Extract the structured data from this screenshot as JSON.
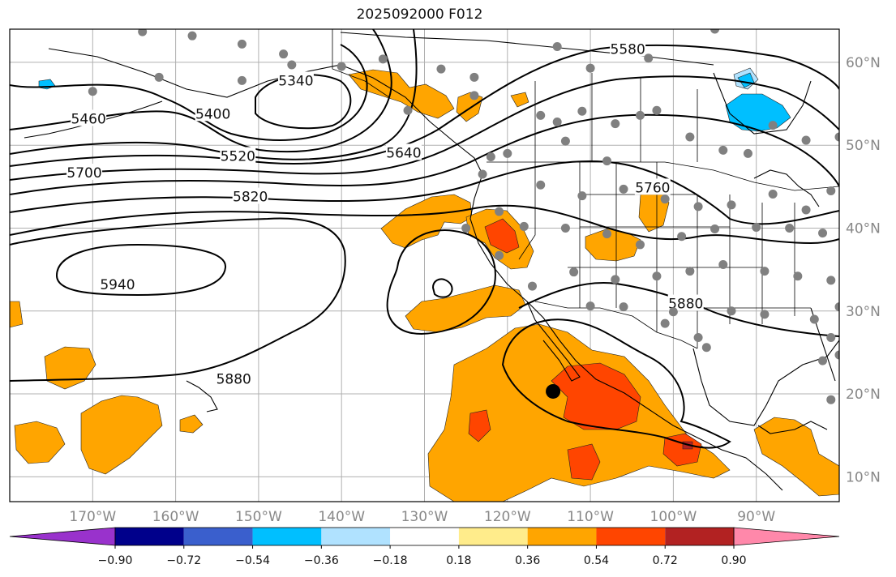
{
  "title": "2025092000 F012",
  "map": {
    "lon_range": [
      -180,
      -80
    ],
    "lat_range": [
      7,
      64
    ],
    "grid_lons": [
      -170,
      -160,
      -150,
      -140,
      -130,
      -120,
      -110,
      -100,
      -90
    ],
    "grid_lats": [
      10,
      20,
      30,
      40,
      50,
      60
    ]
  },
  "lat_labels": [
    "10°N",
    "20°N",
    "30°N",
    "40°N",
    "50°N",
    "60°N"
  ],
  "lon_labels": [
    "170°W",
    "160°W",
    "150°W",
    "140°W",
    "130°W",
    "120°W",
    "110°W",
    "100°W",
    "90°W"
  ],
  "contour_labels": [
    {
      "text": "5340",
      "lon": -145.5,
      "lat": 57.8
    },
    {
      "text": "5400",
      "lon": -155.5,
      "lat": 53.8
    },
    {
      "text": "5460",
      "lon": -170.5,
      "lat": 53.2
    },
    {
      "text": "5520",
      "lon": -152.5,
      "lat": 48.7
    },
    {
      "text": "5580",
      "lon": -105.5,
      "lat": 61.6
    },
    {
      "text": "5640",
      "lon": -132.5,
      "lat": 49.1
    },
    {
      "text": "5700",
      "lon": -171.0,
      "lat": 46.7
    },
    {
      "text": "5760",
      "lon": -102.5,
      "lat": 44.9
    },
    {
      "text": "5820",
      "lon": -151.0,
      "lat": 43.8
    },
    {
      "text": "5880",
      "lon": -98.5,
      "lat": 30.9
    },
    {
      "text": "5880",
      "lon": -153.0,
      "lat": 21.8
    },
    {
      "text": "5940",
      "lon": -167.0,
      "lat": 33.2
    }
  ],
  "colorbar": {
    "ticks": [
      "−0.90",
      "−0.72",
      "−0.54",
      "−0.36",
      "−0.18",
      "0.18",
      "0.36",
      "0.54",
      "0.72",
      "0.90"
    ],
    "colors": [
      "#9932cc",
      "#00008b",
      "#3a5fcd",
      "#00bfff",
      "#b0e2ff",
      "#ffffff",
      "#ffec8b",
      "#ffa500",
      "#ff4500",
      "#b22222",
      "#ff88aa"
    ]
  },
  "colors": {
    "fill_036": "#ffa500",
    "fill_054": "#ff4500",
    "fill_072": "#b22222",
    "fill_neg036": "#00bfff",
    "fill_neg018": "#b0e2ff",
    "station_dot": "#808080",
    "marker": "#000000"
  },
  "marker": {
    "lon": -114.5,
    "lat": 20.3
  }
}
